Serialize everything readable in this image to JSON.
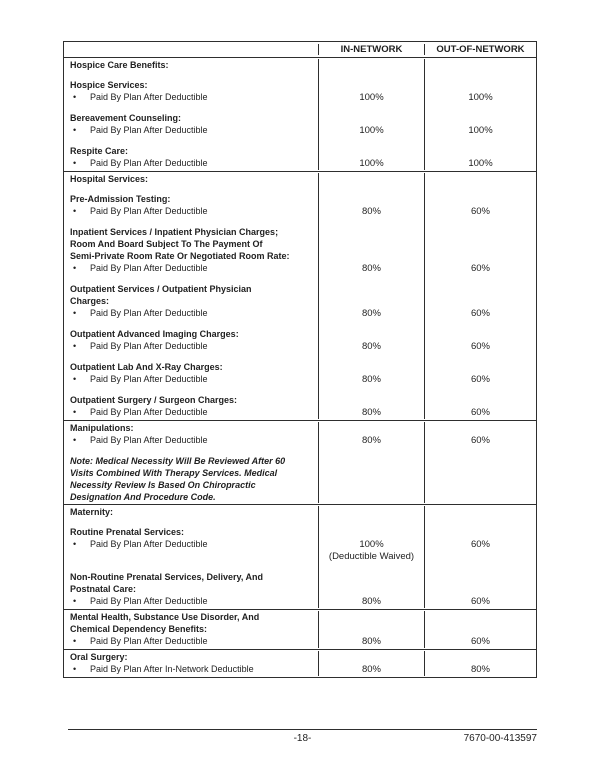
{
  "colors": {
    "page_background": "#ffffff",
    "text": "#1f1f1f",
    "table_border": "#2e2e2e"
  },
  "table": {
    "bullet_char": "•",
    "headers": {
      "in_network": "IN-NETWORK",
      "out_of_network": "OUT-OF-NETWORK"
    },
    "sections": [
      {
        "name": "hospice-care-benefits",
        "lines": [
          {
            "t": "h",
            "text": "Hospice Care Benefits:"
          },
          {
            "t": "gap"
          },
          {
            "t": "h",
            "text": "Hospice Services:"
          },
          {
            "t": "b",
            "text": "Paid By Plan After Deductible",
            "in_network": "100%",
            "out_of_network": "100%"
          },
          {
            "t": "gap"
          },
          {
            "t": "h",
            "text": "Bereavement Counseling:"
          },
          {
            "t": "b",
            "text": "Paid By Plan After Deductible",
            "in_network": "100%",
            "out_of_network": "100%"
          },
          {
            "t": "gap"
          },
          {
            "t": "h",
            "text": "Respite Care:"
          },
          {
            "t": "b",
            "text": "Paid By Plan After Deductible",
            "in_network": "100%",
            "out_of_network": "100%"
          }
        ]
      },
      {
        "name": "hospital-services",
        "lines": [
          {
            "t": "h",
            "text": "Hospital Services:"
          },
          {
            "t": "gap"
          },
          {
            "t": "h",
            "text": "Pre-Admission Testing:"
          },
          {
            "t": "b",
            "text": "Paid By Plan After Deductible",
            "in_network": "80%",
            "out_of_network": "60%"
          },
          {
            "t": "gap"
          },
          {
            "t": "h",
            "text": "Inpatient Services / Inpatient Physician Charges;\nRoom And Board Subject To The Payment Of\nSemi-Private Room Rate Or Negotiated Room Rate:"
          },
          {
            "t": "b",
            "text": "Paid By Plan After Deductible",
            "in_network": "80%",
            "out_of_network": "60%"
          },
          {
            "t": "gap"
          },
          {
            "t": "h",
            "text": "Outpatient Services / Outpatient Physician\nCharges:"
          },
          {
            "t": "b",
            "text": "Paid By Plan After Deductible",
            "in_network": "80%",
            "out_of_network": "60%"
          },
          {
            "t": "gap"
          },
          {
            "t": "h",
            "text": "Outpatient Advanced Imaging Charges:"
          },
          {
            "t": "b",
            "text": "Paid By Plan After Deductible",
            "in_network": "80%",
            "out_of_network": "60%"
          },
          {
            "t": "gap"
          },
          {
            "t": "h",
            "text": "Outpatient Lab And X-Ray Charges:"
          },
          {
            "t": "b",
            "text": "Paid By Plan After Deductible",
            "in_network": "80%",
            "out_of_network": "60%"
          },
          {
            "t": "gap"
          },
          {
            "t": "h",
            "text": "Outpatient Surgery / Surgeon Charges:"
          },
          {
            "t": "b",
            "text": "Paid By Plan After Deductible",
            "in_network": "80%",
            "out_of_network": "60%"
          }
        ]
      },
      {
        "name": "manipulations",
        "lines": [
          {
            "t": "h",
            "text": "Manipulations:"
          },
          {
            "t": "b",
            "text": "Paid By Plan After Deductible",
            "in_network": "80%",
            "out_of_network": "60%"
          },
          {
            "t": "gap"
          },
          {
            "t": "n",
            "text": "Note:  Medical Necessity Will Be Reviewed After 60\nVisits Combined With Therapy Services.  Medical\nNecessity Review Is Based On Chiropractic\nDesignation And Procedure Code."
          }
        ]
      },
      {
        "name": "maternity",
        "lines": [
          {
            "t": "h",
            "text": "Maternity:"
          },
          {
            "t": "gap"
          },
          {
            "t": "h",
            "text": "Routine Prenatal Services:"
          },
          {
            "t": "b",
            "text": "Paid By Plan After Deductible",
            "in_network": "100%",
            "in_network_note": "(Deductible Waived)",
            "out_of_network": "60%"
          },
          {
            "t": "gap"
          },
          {
            "t": "h",
            "text": "Non-Routine Prenatal Services, Delivery, And\nPostnatal Care:"
          },
          {
            "t": "b",
            "text": "Paid By Plan After Deductible",
            "in_network": "80%",
            "out_of_network": "60%"
          }
        ]
      },
      {
        "name": "mental-health-substance-use",
        "lines": [
          {
            "t": "h",
            "text": "Mental Health, Substance Use Disorder, And\nChemical Dependency Benefits:"
          },
          {
            "t": "b",
            "text": "Paid By Plan After Deductible",
            "in_network": "80%",
            "out_of_network": "60%"
          }
        ]
      },
      {
        "name": "oral-surgery",
        "lines": [
          {
            "t": "h",
            "text": "Oral Surgery:"
          },
          {
            "t": "b",
            "text": "Paid By Plan After In-Network Deductible",
            "in_network": "80%",
            "out_of_network": "80%"
          }
        ]
      }
    ]
  },
  "footer": {
    "page_number": "-18-",
    "document_number": "7670-00-413597"
  }
}
